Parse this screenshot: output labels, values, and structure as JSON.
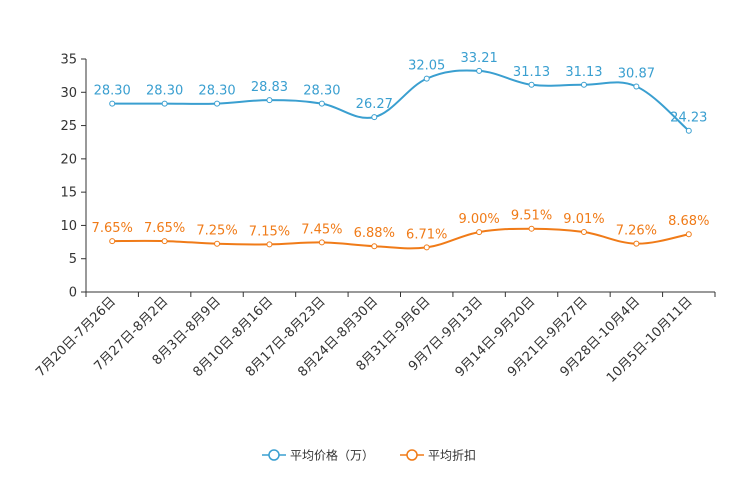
{
  "chart_data": {
    "type": "line",
    "title": "",
    "xlabel": "",
    "ylabel": "",
    "ylim": [
      0,
      35
    ],
    "yticks": [
      0,
      5,
      10,
      15,
      20,
      25,
      30,
      35
    ],
    "categories": [
      "7月20日-7月26日",
      "7月27日-8月2日",
      "8月3日-8月9日",
      "8月10日-8月16日",
      "8月17日-8月23日",
      "8月24日-8月30日",
      "8月31日-9月6日",
      "9月7日-9月13日",
      "9月14日-9月20日",
      "9月21日-9月27日",
      "9月28日-10月4日",
      "10月5日-10月11日"
    ],
    "series": [
      {
        "name": "平均价格（万）",
        "color": "#3a9fd0",
        "values": [
          28.3,
          28.3,
          28.3,
          28.83,
          28.3,
          26.27,
          32.05,
          33.21,
          31.13,
          31.13,
          30.87,
          24.23
        ],
        "labels": [
          "28.30",
          "28.30",
          "28.30",
          "28.83",
          "28.30",
          "26.27",
          "32.05",
          "33.21",
          "31.13",
          "31.13",
          "30.87",
          "24.23"
        ]
      },
      {
        "name": "平均折扣",
        "color": "#f07b18",
        "values": [
          7.65,
          7.65,
          7.25,
          7.15,
          7.45,
          6.88,
          6.71,
          9.0,
          9.51,
          9.01,
          7.26,
          8.68
        ],
        "labels": [
          "7.65%",
          "7.65%",
          "7.25%",
          "7.15%",
          "7.45%",
          "6.88%",
          "6.71%",
          "9.00%",
          "9.51%",
          "9.01%",
          "7.26%",
          "8.68%"
        ]
      }
    ],
    "legend_position": "bottom-center"
  }
}
